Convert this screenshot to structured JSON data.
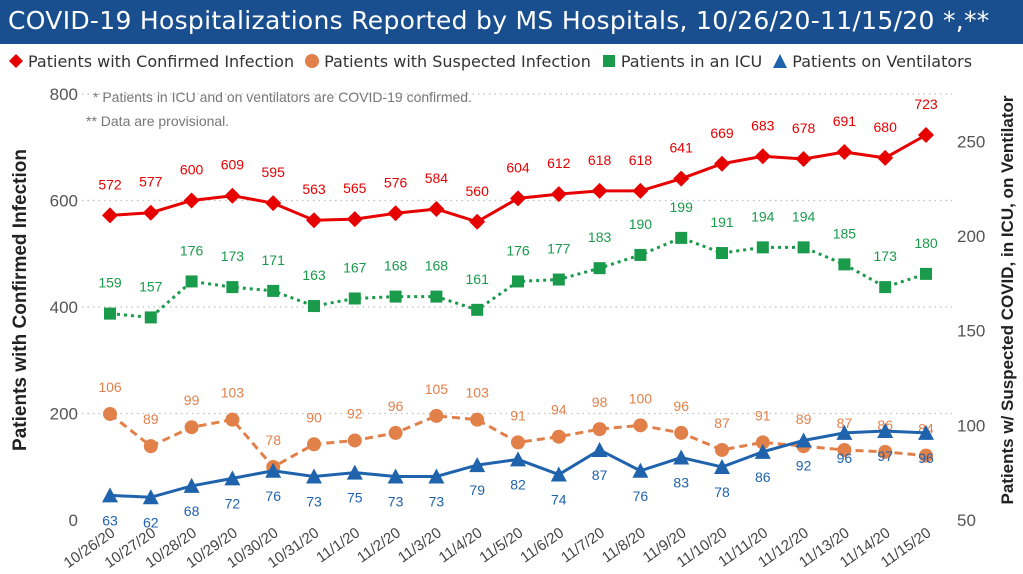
{
  "header": {
    "title": "COVID-19 Hospitalizations Reported by MS Hospitals, 10/26/20-11/15/20 *,**"
  },
  "colors": {
    "title_bg": "#1a4f8f",
    "confirmed": "#e60000",
    "suspected": "#e2804a",
    "icu": "#1a9a4b",
    "ventilators": "#2063ad",
    "grid": "#bfbfbf",
    "axis_text": "#555555"
  },
  "notes": [
    "* Patients in ICU and on ventilators are COVID-19 confirmed.",
    "** Data are provisional."
  ],
  "chart_data": {
    "type": "line",
    "title": "COVID-19 Hospitalizations Reported by MS Hospitals, 10/26/20-11/15/20 *,**",
    "categories": [
      "10/26/20",
      "10/27/20",
      "10/28/20",
      "10/29/20",
      "10/30/20",
      "10/31/20",
      "11/1/20",
      "11/2/20",
      "11/3/20",
      "11/4/20",
      "11/5/20",
      "11/6/20",
      "11/7/20",
      "11/8/20",
      "11/9/20",
      "11/10/20",
      "11/11/20",
      "11/12/20",
      "11/13/20",
      "11/14/20",
      "11/15/20"
    ],
    "ylabel_left": "Patients with Confirmed Infection",
    "ylabel_right": "Patients w/ Suspected COVID, in ICU, on Ventilator",
    "ylim_left": [
      0,
      800
    ],
    "yticks_left": [
      0,
      200,
      400,
      600,
      800
    ],
    "ylim_right": [
      50,
      275
    ],
    "yticks_right": [
      50,
      100,
      150,
      200,
      250
    ],
    "legend_position": "top",
    "grid": "horizontal dotted",
    "series": [
      {
        "name": "Patients with Confirmed Infection",
        "axis": "left",
        "marker": "diamond",
        "line": "solid",
        "color": "#e60000",
        "values": [
          572,
          577,
          600,
          609,
          595,
          563,
          565,
          576,
          584,
          560,
          604,
          612,
          618,
          618,
          641,
          669,
          683,
          678,
          691,
          680,
          723
        ]
      },
      {
        "name": "Patients with Suspected Infection",
        "axis": "right",
        "marker": "circle",
        "line": "dashed",
        "color": "#e2804a",
        "values": [
          106,
          89,
          99,
          103,
          78,
          90,
          92,
          96,
          105,
          103,
          91,
          94,
          98,
          100,
          96,
          87,
          91,
          89,
          87,
          86,
          84
        ]
      },
      {
        "name": "Patients in an ICU",
        "axis": "right",
        "marker": "square",
        "line": "dotted",
        "color": "#1a9a4b",
        "values": [
          159,
          157,
          176,
          173,
          171,
          163,
          167,
          168,
          168,
          161,
          176,
          177,
          183,
          190,
          199,
          191,
          194,
          194,
          185,
          173,
          180
        ]
      },
      {
        "name": "Patients on Ventilators",
        "axis": "right",
        "marker": "triangle",
        "line": "solid",
        "color": "#2063ad",
        "values": [
          63,
          62,
          68,
          72,
          76,
          73,
          75,
          73,
          73,
          79,
          82,
          74,
          87,
          76,
          83,
          78,
          86,
          92,
          96,
          97,
          96
        ]
      }
    ]
  }
}
